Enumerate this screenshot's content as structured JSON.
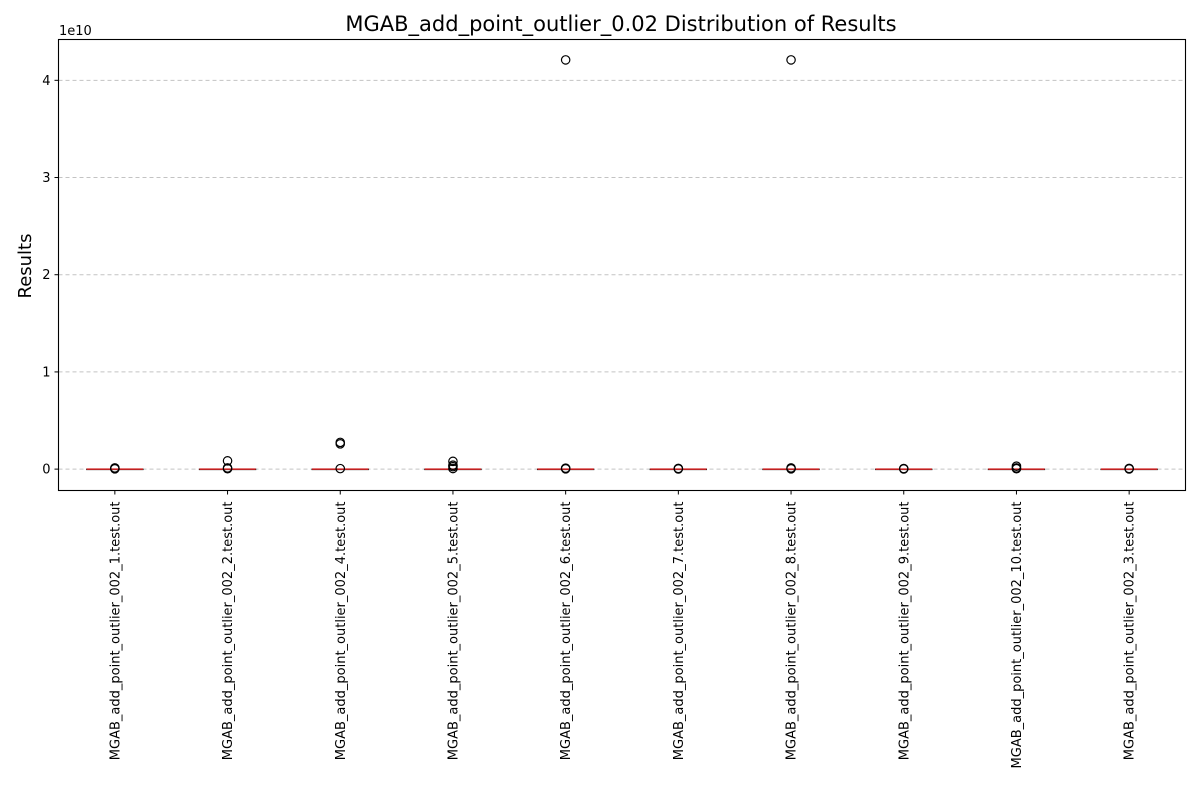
{
  "chart_data": {
    "type": "box",
    "title": "MGAB_add_point_outlier_0.02 Distribution of Results",
    "xlabel": "",
    "ylabel": "Results",
    "y_offset_label": "1e10",
    "y_scale_factor": 10000000000,
    "ylim": [
      -2200000000,
      44200000000
    ],
    "yticks": [
      0,
      10000000000,
      20000000000,
      30000000000,
      40000000000
    ],
    "ytick_labels": [
      "0",
      "1",
      "2",
      "3",
      "4"
    ],
    "grid": "y-dashed",
    "colors": {
      "median": "#d62728",
      "box": "#000000",
      "grid": "#b0b0b0"
    },
    "categories": [
      "MGAB_add_point_outlier_002_1.test.out",
      "MGAB_add_point_outlier_002_2.test.out",
      "MGAB_add_point_outlier_002_4.test.out",
      "MGAB_add_point_outlier_002_5.test.out",
      "MGAB_add_point_outlier_002_6.test.out",
      "MGAB_add_point_outlier_002_7.test.out",
      "MGAB_add_point_outlier_002_8.test.out",
      "MGAB_add_point_outlier_002_9.test.out",
      "MGAB_add_point_outlier_002_10.test.out",
      "MGAB_add_point_outlier_002_3.test.out"
    ],
    "boxes": [
      {
        "q1": 0,
        "median": 0,
        "q3": 0,
        "whislo": 0,
        "whishi": 0,
        "fliers": [
          30000000,
          80000000,
          120000000
        ]
      },
      {
        "q1": 0,
        "median": 0,
        "q3": 0,
        "whislo": 0,
        "whishi": 0,
        "fliers": [
          40000000,
          120000000,
          850000000
        ]
      },
      {
        "q1": 0,
        "median": 0,
        "q3": 0,
        "whislo": 0,
        "whishi": 0,
        "fliers": [
          50000000,
          2600000000,
          2750000000
        ]
      },
      {
        "q1": 0,
        "median": 0,
        "q3": 0,
        "whislo": 0,
        "whishi": 0,
        "fliers": [
          60000000,
          250000000,
          400000000,
          800000000
        ]
      },
      {
        "q1": 0,
        "median": 0,
        "q3": 0,
        "whislo": 0,
        "whishi": 0,
        "fliers": [
          30000000,
          100000000,
          42100000000
        ]
      },
      {
        "q1": 0,
        "median": 0,
        "q3": 0,
        "whislo": 0,
        "whishi": 0,
        "fliers": [
          20000000,
          70000000
        ]
      },
      {
        "q1": 0,
        "median": 0,
        "q3": 0,
        "whislo": 0,
        "whishi": 0,
        "fliers": [
          30000000,
          120000000,
          42100000000
        ]
      },
      {
        "q1": 0,
        "median": 0,
        "q3": 0,
        "whislo": 0,
        "whishi": 0,
        "fliers": [
          20000000,
          60000000
        ]
      },
      {
        "q1": 0,
        "median": 0,
        "q3": 0,
        "whislo": 0,
        "whishi": 0,
        "fliers": [
          40000000,
          120000000,
          300000000
        ]
      },
      {
        "q1": 0,
        "median": 0,
        "q3": 0,
        "whislo": 0,
        "whishi": 0,
        "fliers": [
          20000000,
          70000000
        ]
      }
    ]
  }
}
